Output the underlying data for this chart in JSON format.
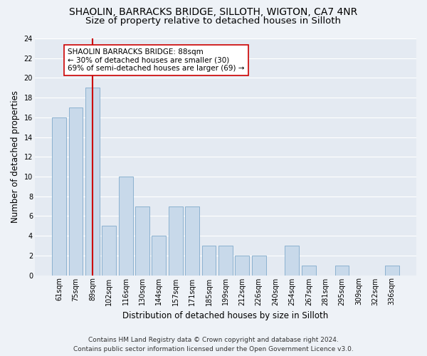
{
  "title_line1": "SHAOLIN, BARRACKS BRIDGE, SILLOTH, WIGTON, CA7 4NR",
  "title_line2": "Size of property relative to detached houses in Silloth",
  "xlabel": "Distribution of detached houses by size in Silloth",
  "ylabel": "Number of detached properties",
  "categories": [
    "61sqm",
    "75sqm",
    "89sqm",
    "102sqm",
    "116sqm",
    "130sqm",
    "144sqm",
    "157sqm",
    "171sqm",
    "185sqm",
    "199sqm",
    "212sqm",
    "226sqm",
    "240sqm",
    "254sqm",
    "267sqm",
    "281sqm",
    "295sqm",
    "309sqm",
    "322sqm",
    "336sqm"
  ],
  "values": [
    16,
    17,
    19,
    5,
    10,
    7,
    4,
    7,
    7,
    3,
    3,
    2,
    2,
    0,
    3,
    1,
    0,
    1,
    0,
    0,
    1
  ],
  "bar_color": "#c8d9ea",
  "bar_edge_color": "#7faacb",
  "marker_index": 2,
  "marker_label_line1": "SHAOLIN BARRACKS BRIDGE: 88sqm",
  "marker_label_line2": "← 30% of detached houses are smaller (30)",
  "marker_label_line3": "69% of semi-detached houses are larger (69) →",
  "marker_color": "#cc0000",
  "ylim": [
    0,
    24
  ],
  "yticks": [
    0,
    2,
    4,
    6,
    8,
    10,
    12,
    14,
    16,
    18,
    20,
    22,
    24
  ],
  "footer_line1": "Contains HM Land Registry data © Crown copyright and database right 2024.",
  "footer_line2": "Contains public sector information licensed under the Open Government Licence v3.0.",
  "bg_color": "#eef2f7",
  "plot_bg_color": "#e4eaf2",
  "grid_color": "#ffffff",
  "title_fontsize": 10,
  "subtitle_fontsize": 9.5,
  "axis_label_fontsize": 8.5,
  "tick_fontsize": 7,
  "annotation_fontsize": 7.5,
  "footer_fontsize": 6.5
}
